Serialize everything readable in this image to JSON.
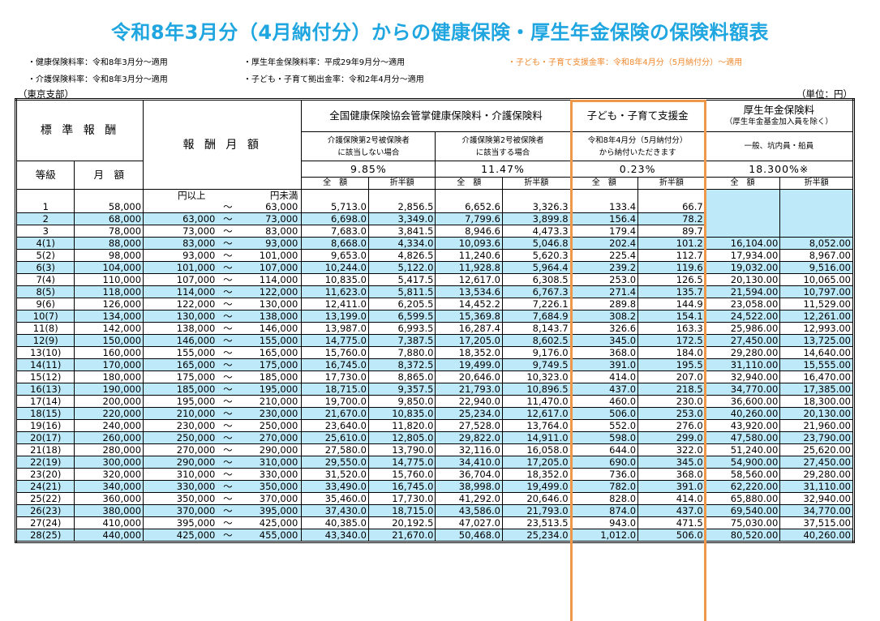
{
  "title": "令和8年3月分（4月納付分）からの健康保険・厚生年金保険の保険料額表",
  "notes": {
    "health_rate": "・健康保険料率：令和8年3月分～適用",
    "care_rate": "・介護保険料率：令和8年3月分～適用",
    "pension_rate": "・厚生年金保険料率：平成29年9月分～適用",
    "child_contribution_rate": "・子ども・子育て拠出金率：令和2年4月分～適用",
    "child_support_rate": "・子ども・子育て支援金率：令和8年4月分（5月納付分）～適用"
  },
  "branch": "（東京支部）",
  "unit": "（単位：円）",
  "colors": {
    "title": "#1fa6e0",
    "row_fill": "#bde9f8",
    "highlight": "#f0984a",
    "orange_text": "#f0892e"
  },
  "header": {
    "standard_remuneration": "標 準 報 酬",
    "grade": "等級",
    "monthly_amount": "月　額",
    "remuneration_monthly": "報 酬 月 額",
    "health_care_group": "全国健康保険協会管掌健康保険料・介護保険料",
    "not_care_line1": "介護保険第2号被保険者",
    "not_care_line2": "に該当しない場合",
    "care_line1": "介護保険第2号被保険者",
    "care_line2": "に該当する場合",
    "child_support_group": "子ども・子育て支援金",
    "child_support_line1": "令和8年4月分（5月納付分）",
    "child_support_line2": "から納付いただきます",
    "pension_group": "厚生年金保険料",
    "pension_sub": "（厚生年金基金加入員を除く）",
    "pension_type": "一般、坑内員・船員",
    "rate_health": "9.85%",
    "rate_care": "11.47%",
    "rate_child": "0.23%",
    "rate_pension": "18.300%※",
    "full": "全　額",
    "half": "折半額",
    "range_low": "円以上",
    "range_high": "円未満",
    "tilde": "～"
  },
  "rows": [
    {
      "grade": "1",
      "monthly": "58,000",
      "from": "",
      "to": "63,000",
      "h_full": "5,713.0",
      "h_half": "2,856.5",
      "c_full": "6,652.6",
      "c_half": "3,326.3",
      "k_full": "133.4",
      "k_half": "66.7",
      "p_full": "",
      "p_half": ""
    },
    {
      "grade": "2",
      "monthly": "68,000",
      "from": "63,000",
      "to": "73,000",
      "h_full": "6,698.0",
      "h_half": "3,349.0",
      "c_full": "7,799.6",
      "c_half": "3,899.8",
      "k_full": "156.4",
      "k_half": "78.2",
      "p_full": "",
      "p_half": ""
    },
    {
      "grade": "3",
      "monthly": "78,000",
      "from": "73,000",
      "to": "83,000",
      "h_full": "7,683.0",
      "h_half": "3,841.5",
      "c_full": "8,946.6",
      "c_half": "4,473.3",
      "k_full": "179.4",
      "k_half": "89.7",
      "p_full": "",
      "p_half": ""
    },
    {
      "grade": "4(1)",
      "monthly": "88,000",
      "from": "83,000",
      "to": "93,000",
      "h_full": "8,668.0",
      "h_half": "4,334.0",
      "c_full": "10,093.6",
      "c_half": "5,046.8",
      "k_full": "202.4",
      "k_half": "101.2",
      "p_full": "16,104.00",
      "p_half": "8,052.00"
    },
    {
      "grade": "5(2)",
      "monthly": "98,000",
      "from": "93,000",
      "to": "101,000",
      "h_full": "9,653.0",
      "h_half": "4,826.5",
      "c_full": "11,240.6",
      "c_half": "5,620.3",
      "k_full": "225.4",
      "k_half": "112.7",
      "p_full": "17,934.00",
      "p_half": "8,967.00"
    },
    {
      "grade": "6(3)",
      "monthly": "104,000",
      "from": "101,000",
      "to": "107,000",
      "h_full": "10,244.0",
      "h_half": "5,122.0",
      "c_full": "11,928.8",
      "c_half": "5,964.4",
      "k_full": "239.2",
      "k_half": "119.6",
      "p_full": "19,032.00",
      "p_half": "9,516.00"
    },
    {
      "grade": "7(4)",
      "monthly": "110,000",
      "from": "107,000",
      "to": "114,000",
      "h_full": "10,835.0",
      "h_half": "5,417.5",
      "c_full": "12,617.0",
      "c_half": "6,308.5",
      "k_full": "253.0",
      "k_half": "126.5",
      "p_full": "20,130.00",
      "p_half": "10,065.00"
    },
    {
      "grade": "8(5)",
      "monthly": "118,000",
      "from": "114,000",
      "to": "122,000",
      "h_full": "11,623.0",
      "h_half": "5,811.5",
      "c_full": "13,534.6",
      "c_half": "6,767.3",
      "k_full": "271.4",
      "k_half": "135.7",
      "p_full": "21,594.00",
      "p_half": "10,797.00"
    },
    {
      "grade": "9(6)",
      "monthly": "126,000",
      "from": "122,000",
      "to": "130,000",
      "h_full": "12,411.0",
      "h_half": "6,205.5",
      "c_full": "14,452.2",
      "c_half": "7,226.1",
      "k_full": "289.8",
      "k_half": "144.9",
      "p_full": "23,058.00",
      "p_half": "11,529.00"
    },
    {
      "grade": "10(7)",
      "monthly": "134,000",
      "from": "130,000",
      "to": "138,000",
      "h_full": "13,199.0",
      "h_half": "6,599.5",
      "c_full": "15,369.8",
      "c_half": "7,684.9",
      "k_full": "308.2",
      "k_half": "154.1",
      "p_full": "24,522.00",
      "p_half": "12,261.00"
    },
    {
      "grade": "11(8)",
      "monthly": "142,000",
      "from": "138,000",
      "to": "146,000",
      "h_full": "13,987.0",
      "h_half": "6,993.5",
      "c_full": "16,287.4",
      "c_half": "8,143.7",
      "k_full": "326.6",
      "k_half": "163.3",
      "p_full": "25,986.00",
      "p_half": "12,993.00"
    },
    {
      "grade": "12(9)",
      "monthly": "150,000",
      "from": "146,000",
      "to": "155,000",
      "h_full": "14,775.0",
      "h_half": "7,387.5",
      "c_full": "17,205.0",
      "c_half": "8,602.5",
      "k_full": "345.0",
      "k_half": "172.5",
      "p_full": "27,450.00",
      "p_half": "13,725.00"
    },
    {
      "grade": "13(10)",
      "monthly": "160,000",
      "from": "155,000",
      "to": "165,000",
      "h_full": "15,760.0",
      "h_half": "7,880.0",
      "c_full": "18,352.0",
      "c_half": "9,176.0",
      "k_full": "368.0",
      "k_half": "184.0",
      "p_full": "29,280.00",
      "p_half": "14,640.00"
    },
    {
      "grade": "14(11)",
      "monthly": "170,000",
      "from": "165,000",
      "to": "175,000",
      "h_full": "16,745.0",
      "h_half": "8,372.5",
      "c_full": "19,499.0",
      "c_half": "9,749.5",
      "k_full": "391.0",
      "k_half": "195.5",
      "p_full": "31,110.00",
      "p_half": "15,555.00"
    },
    {
      "grade": "15(12)",
      "monthly": "180,000",
      "from": "175,000",
      "to": "185,000",
      "h_full": "17,730.0",
      "h_half": "8,865.0",
      "c_full": "20,646.0",
      "c_half": "10,323.0",
      "k_full": "414.0",
      "k_half": "207.0",
      "p_full": "32,940.00",
      "p_half": "16,470.00"
    },
    {
      "grade": "16(13)",
      "monthly": "190,000",
      "from": "185,000",
      "to": "195,000",
      "h_full": "18,715.0",
      "h_half": "9,357.5",
      "c_full": "21,793.0",
      "c_half": "10,896.5",
      "k_full": "437.0",
      "k_half": "218.5",
      "p_full": "34,770.00",
      "p_half": "17,385.00"
    },
    {
      "grade": "17(14)",
      "monthly": "200,000",
      "from": "195,000",
      "to": "210,000",
      "h_full": "19,700.0",
      "h_half": "9,850.0",
      "c_full": "22,940.0",
      "c_half": "11,470.0",
      "k_full": "460.0",
      "k_half": "230.0",
      "p_full": "36,600.00",
      "p_half": "18,300.00"
    },
    {
      "grade": "18(15)",
      "monthly": "220,000",
      "from": "210,000",
      "to": "230,000",
      "h_full": "21,670.0",
      "h_half": "10,835.0",
      "c_full": "25,234.0",
      "c_half": "12,617.0",
      "k_full": "506.0",
      "k_half": "253.0",
      "p_full": "40,260.00",
      "p_half": "20,130.00"
    },
    {
      "grade": "19(16)",
      "monthly": "240,000",
      "from": "230,000",
      "to": "250,000",
      "h_full": "23,640.0",
      "h_half": "11,820.0",
      "c_full": "27,528.0",
      "c_half": "13,764.0",
      "k_full": "552.0",
      "k_half": "276.0",
      "p_full": "43,920.00",
      "p_half": "21,960.00"
    },
    {
      "grade": "20(17)",
      "monthly": "260,000",
      "from": "250,000",
      "to": "270,000",
      "h_full": "25,610.0",
      "h_half": "12,805.0",
      "c_full": "29,822.0",
      "c_half": "14,911.0",
      "k_full": "598.0",
      "k_half": "299.0",
      "p_full": "47,580.00",
      "p_half": "23,790.00"
    },
    {
      "grade": "21(18)",
      "monthly": "280,000",
      "from": "270,000",
      "to": "290,000",
      "h_full": "27,580.0",
      "h_half": "13,790.0",
      "c_full": "32,116.0",
      "c_half": "16,058.0",
      "k_full": "644.0",
      "k_half": "322.0",
      "p_full": "51,240.00",
      "p_half": "25,620.00"
    },
    {
      "grade": "22(19)",
      "monthly": "300,000",
      "from": "290,000",
      "to": "310,000",
      "h_full": "29,550.0",
      "h_half": "14,775.0",
      "c_full": "34,410.0",
      "c_half": "17,205.0",
      "k_full": "690.0",
      "k_half": "345.0",
      "p_full": "54,900.00",
      "p_half": "27,450.00"
    },
    {
      "grade": "23(20)",
      "monthly": "320,000",
      "from": "310,000",
      "to": "330,000",
      "h_full": "31,520.0",
      "h_half": "15,760.0",
      "c_full": "36,704.0",
      "c_half": "18,352.0",
      "k_full": "736.0",
      "k_half": "368.0",
      "p_full": "58,560.00",
      "p_half": "29,280.00"
    },
    {
      "grade": "24(21)",
      "monthly": "340,000",
      "from": "330,000",
      "to": "350,000",
      "h_full": "33,490.0",
      "h_half": "16,745.0",
      "c_full": "38,998.0",
      "c_half": "19,499.0",
      "k_full": "782.0",
      "k_half": "391.0",
      "p_full": "62,220.00",
      "p_half": "31,110.00"
    },
    {
      "grade": "25(22)",
      "monthly": "360,000",
      "from": "350,000",
      "to": "370,000",
      "h_full": "35,460.0",
      "h_half": "17,730.0",
      "c_full": "41,292.0",
      "c_half": "20,646.0",
      "k_full": "828.0",
      "k_half": "414.0",
      "p_full": "65,880.00",
      "p_half": "32,940.00"
    },
    {
      "grade": "26(23)",
      "monthly": "380,000",
      "from": "370,000",
      "to": "395,000",
      "h_full": "37,430.0",
      "h_half": "18,715.0",
      "c_full": "43,586.0",
      "c_half": "21,793.0",
      "k_full": "874.0",
      "k_half": "437.0",
      "p_full": "69,540.00",
      "p_half": "34,770.00"
    },
    {
      "grade": "27(24)",
      "monthly": "410,000",
      "from": "395,000",
      "to": "425,000",
      "h_full": "40,385.0",
      "h_half": "20,192.5",
      "c_full": "47,027.0",
      "c_half": "23,513.5",
      "k_full": "943.0",
      "k_half": "471.5",
      "p_full": "75,030.00",
      "p_half": "37,515.00"
    },
    {
      "grade": "28(25)",
      "monthly": "440,000",
      "from": "425,000",
      "to": "455,000",
      "h_full": "43,340.0",
      "h_half": "21,670.0",
      "c_full": "50,468.0",
      "c_half": "25,234.0",
      "k_full": "1,012.0",
      "k_half": "506.0",
      "p_full": "80,520.00",
      "p_half": "40,260.00"
    }
  ]
}
